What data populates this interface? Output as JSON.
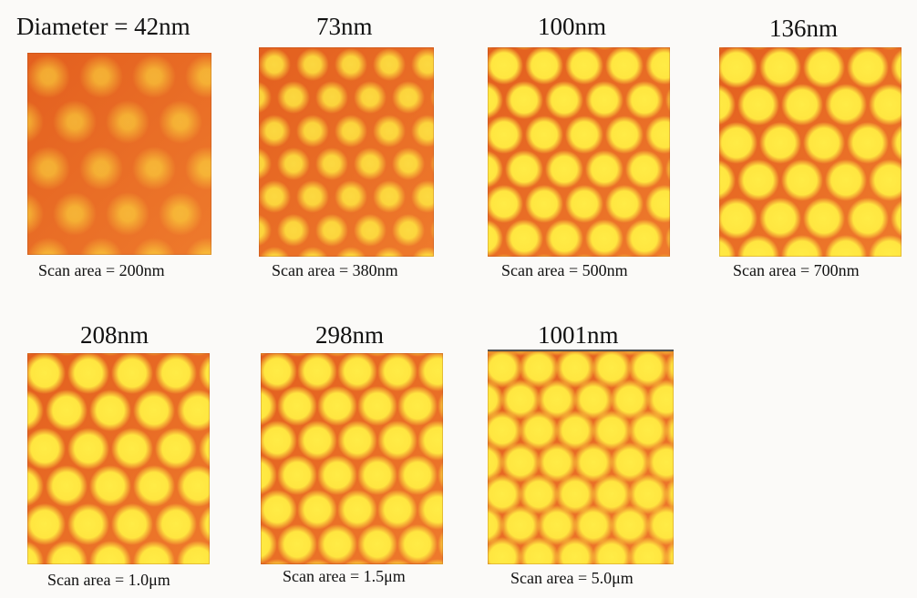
{
  "panels": [
    {
      "title": "Diameter = 42nm",
      "caption": "Scan area = 200nm"
    },
    {
      "title": "73nm",
      "caption": "Scan area = 380nm"
    },
    {
      "title": "100nm",
      "caption": "Scan area = 500nm"
    },
    {
      "title": "136nm",
      "caption": "Scan area = 700nm"
    },
    {
      "title": "208nm",
      "caption": "Scan area = 1.0μm"
    },
    {
      "title": "298nm",
      "caption": "Scan area = 1.5μm"
    },
    {
      "title": "1001nm",
      "caption": "Scan area = 5.0μm"
    }
  ],
  "colors": {
    "background": "#fbfaf8",
    "matrix_orange": "#e86a22",
    "dot_yellow": "#ffe640"
  }
}
